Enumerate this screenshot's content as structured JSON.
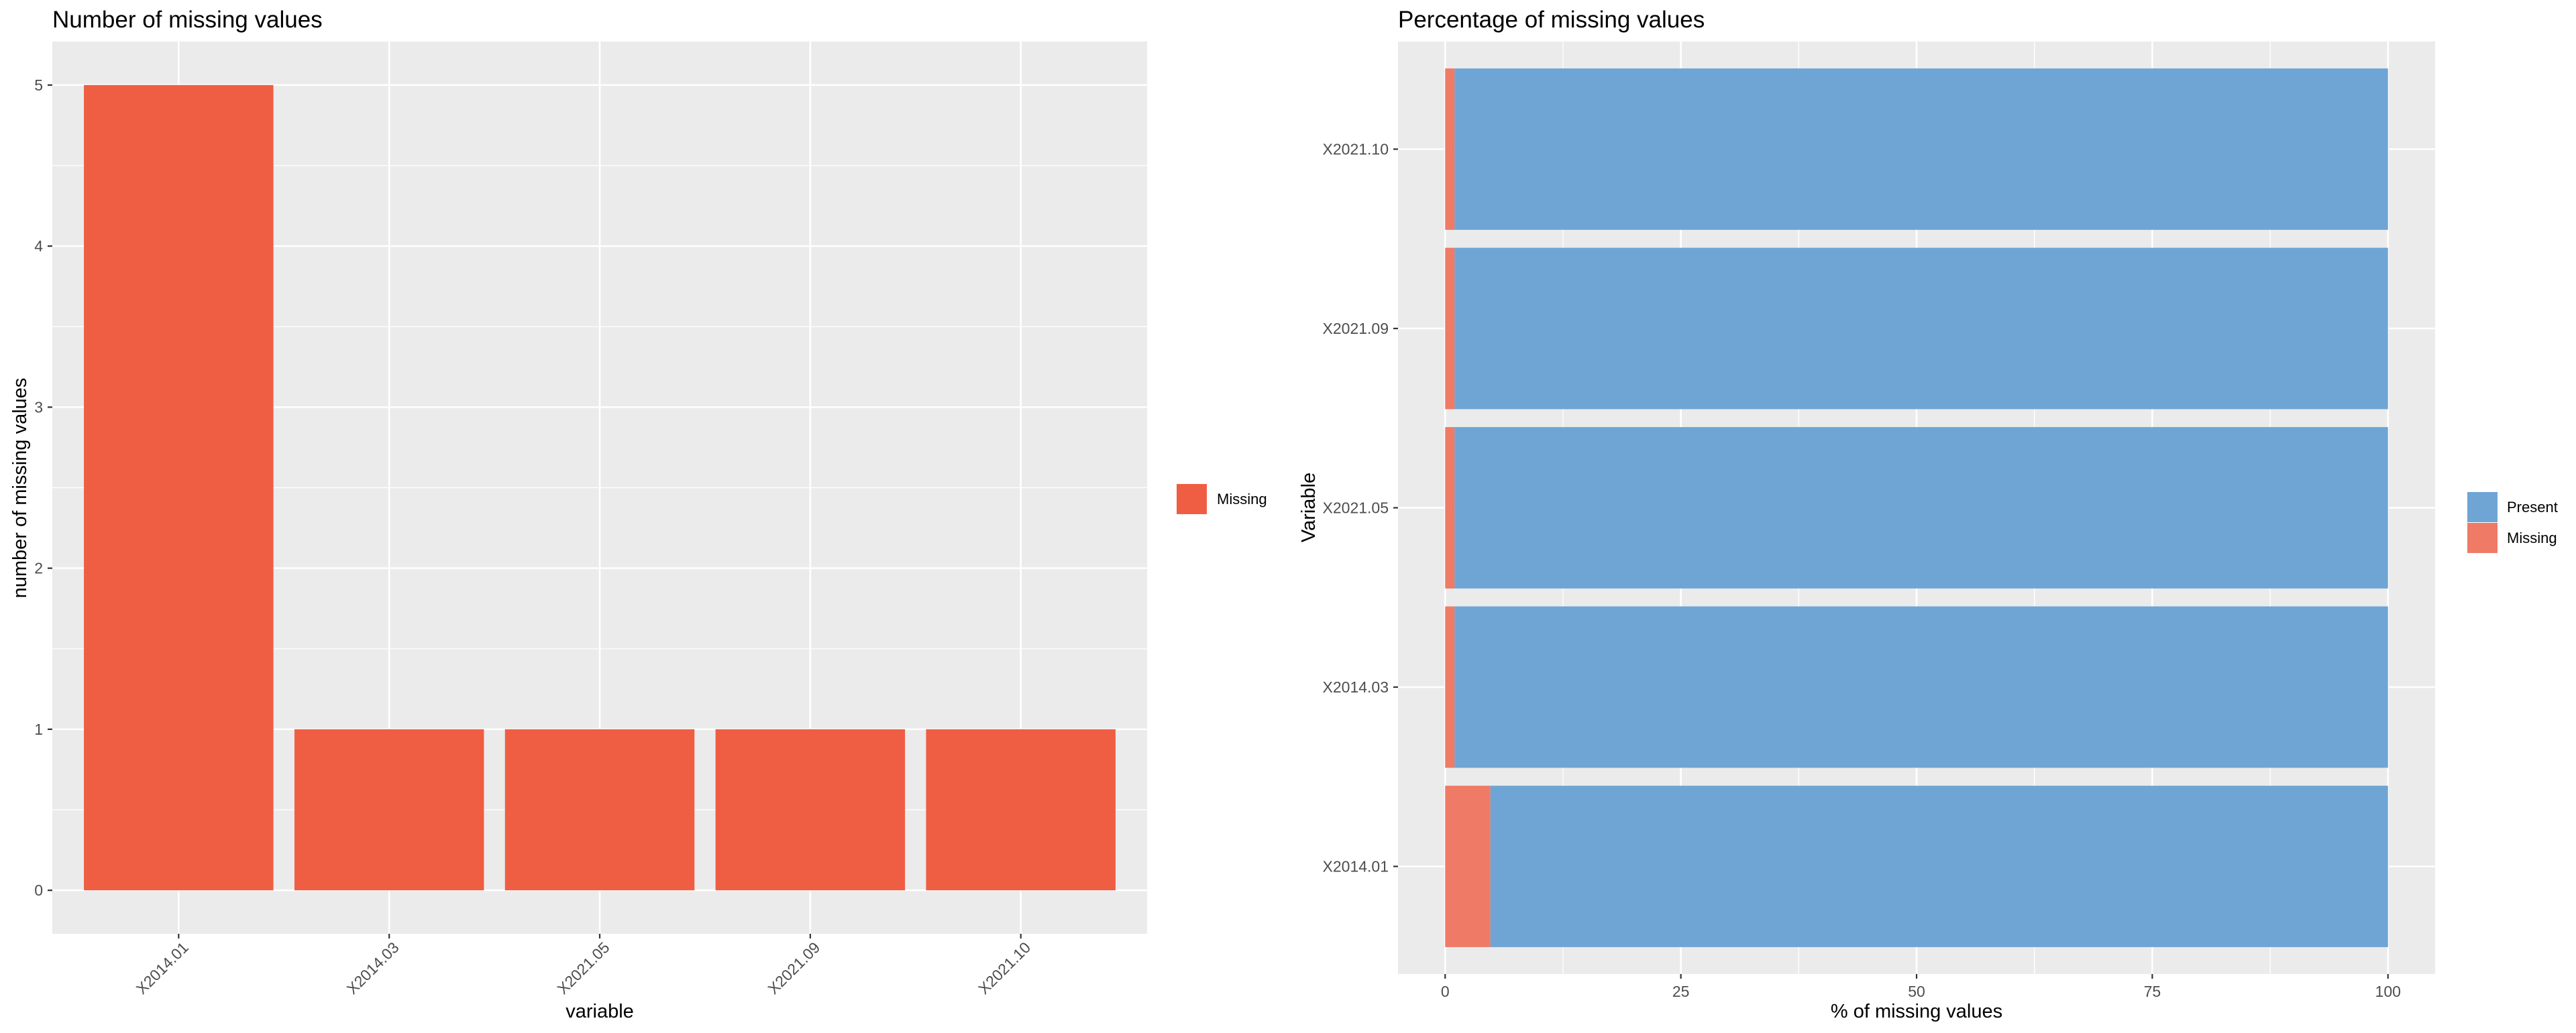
{
  "colors": {
    "missing_bar": "#ef5e43",
    "missing_stack": "#ef7a66",
    "present": "#6ea5d4",
    "panel_bg": "#ebebeb",
    "grid": "#ffffff"
  },
  "chart_data": [
    {
      "type": "bar",
      "title": "Number of missing values",
      "xlabel": "variable",
      "ylabel": "number of missing values",
      "categories": [
        "X2014.01",
        "X2014.03",
        "X2021.05",
        "X2021.09",
        "X2021.10"
      ],
      "values": [
        5,
        1,
        1,
        1,
        1
      ],
      "ylim": [
        -0.27,
        5.27
      ],
      "yticks": [
        "0",
        "1",
        "2",
        "3",
        "4",
        "5"
      ],
      "grid": true,
      "legend": {
        "placement": "right",
        "entries": [
          "Missing"
        ]
      }
    },
    {
      "type": "bar",
      "orientation": "horizontal",
      "stacked": true,
      "title": "Percentage of missing values",
      "xlabel": "% of missing values",
      "ylabel": "Variable",
      "categories": [
        "X2014.01",
        "X2014.03",
        "X2021.05",
        "X2021.09",
        "X2021.10"
      ],
      "series": [
        {
          "name": "Missing",
          "values": [
            4.8,
            1.0,
            1.0,
            1.0,
            1.0
          ]
        },
        {
          "name": "Present",
          "values": [
            95.2,
            99.0,
            99.0,
            99.0,
            99.0
          ]
        }
      ],
      "xlim": [
        -5,
        105
      ],
      "xticks": [
        "0",
        "25",
        "50",
        "75",
        "100"
      ],
      "grid": true,
      "legend": {
        "placement": "right",
        "entries": [
          "Present",
          "Missing"
        ]
      }
    }
  ]
}
